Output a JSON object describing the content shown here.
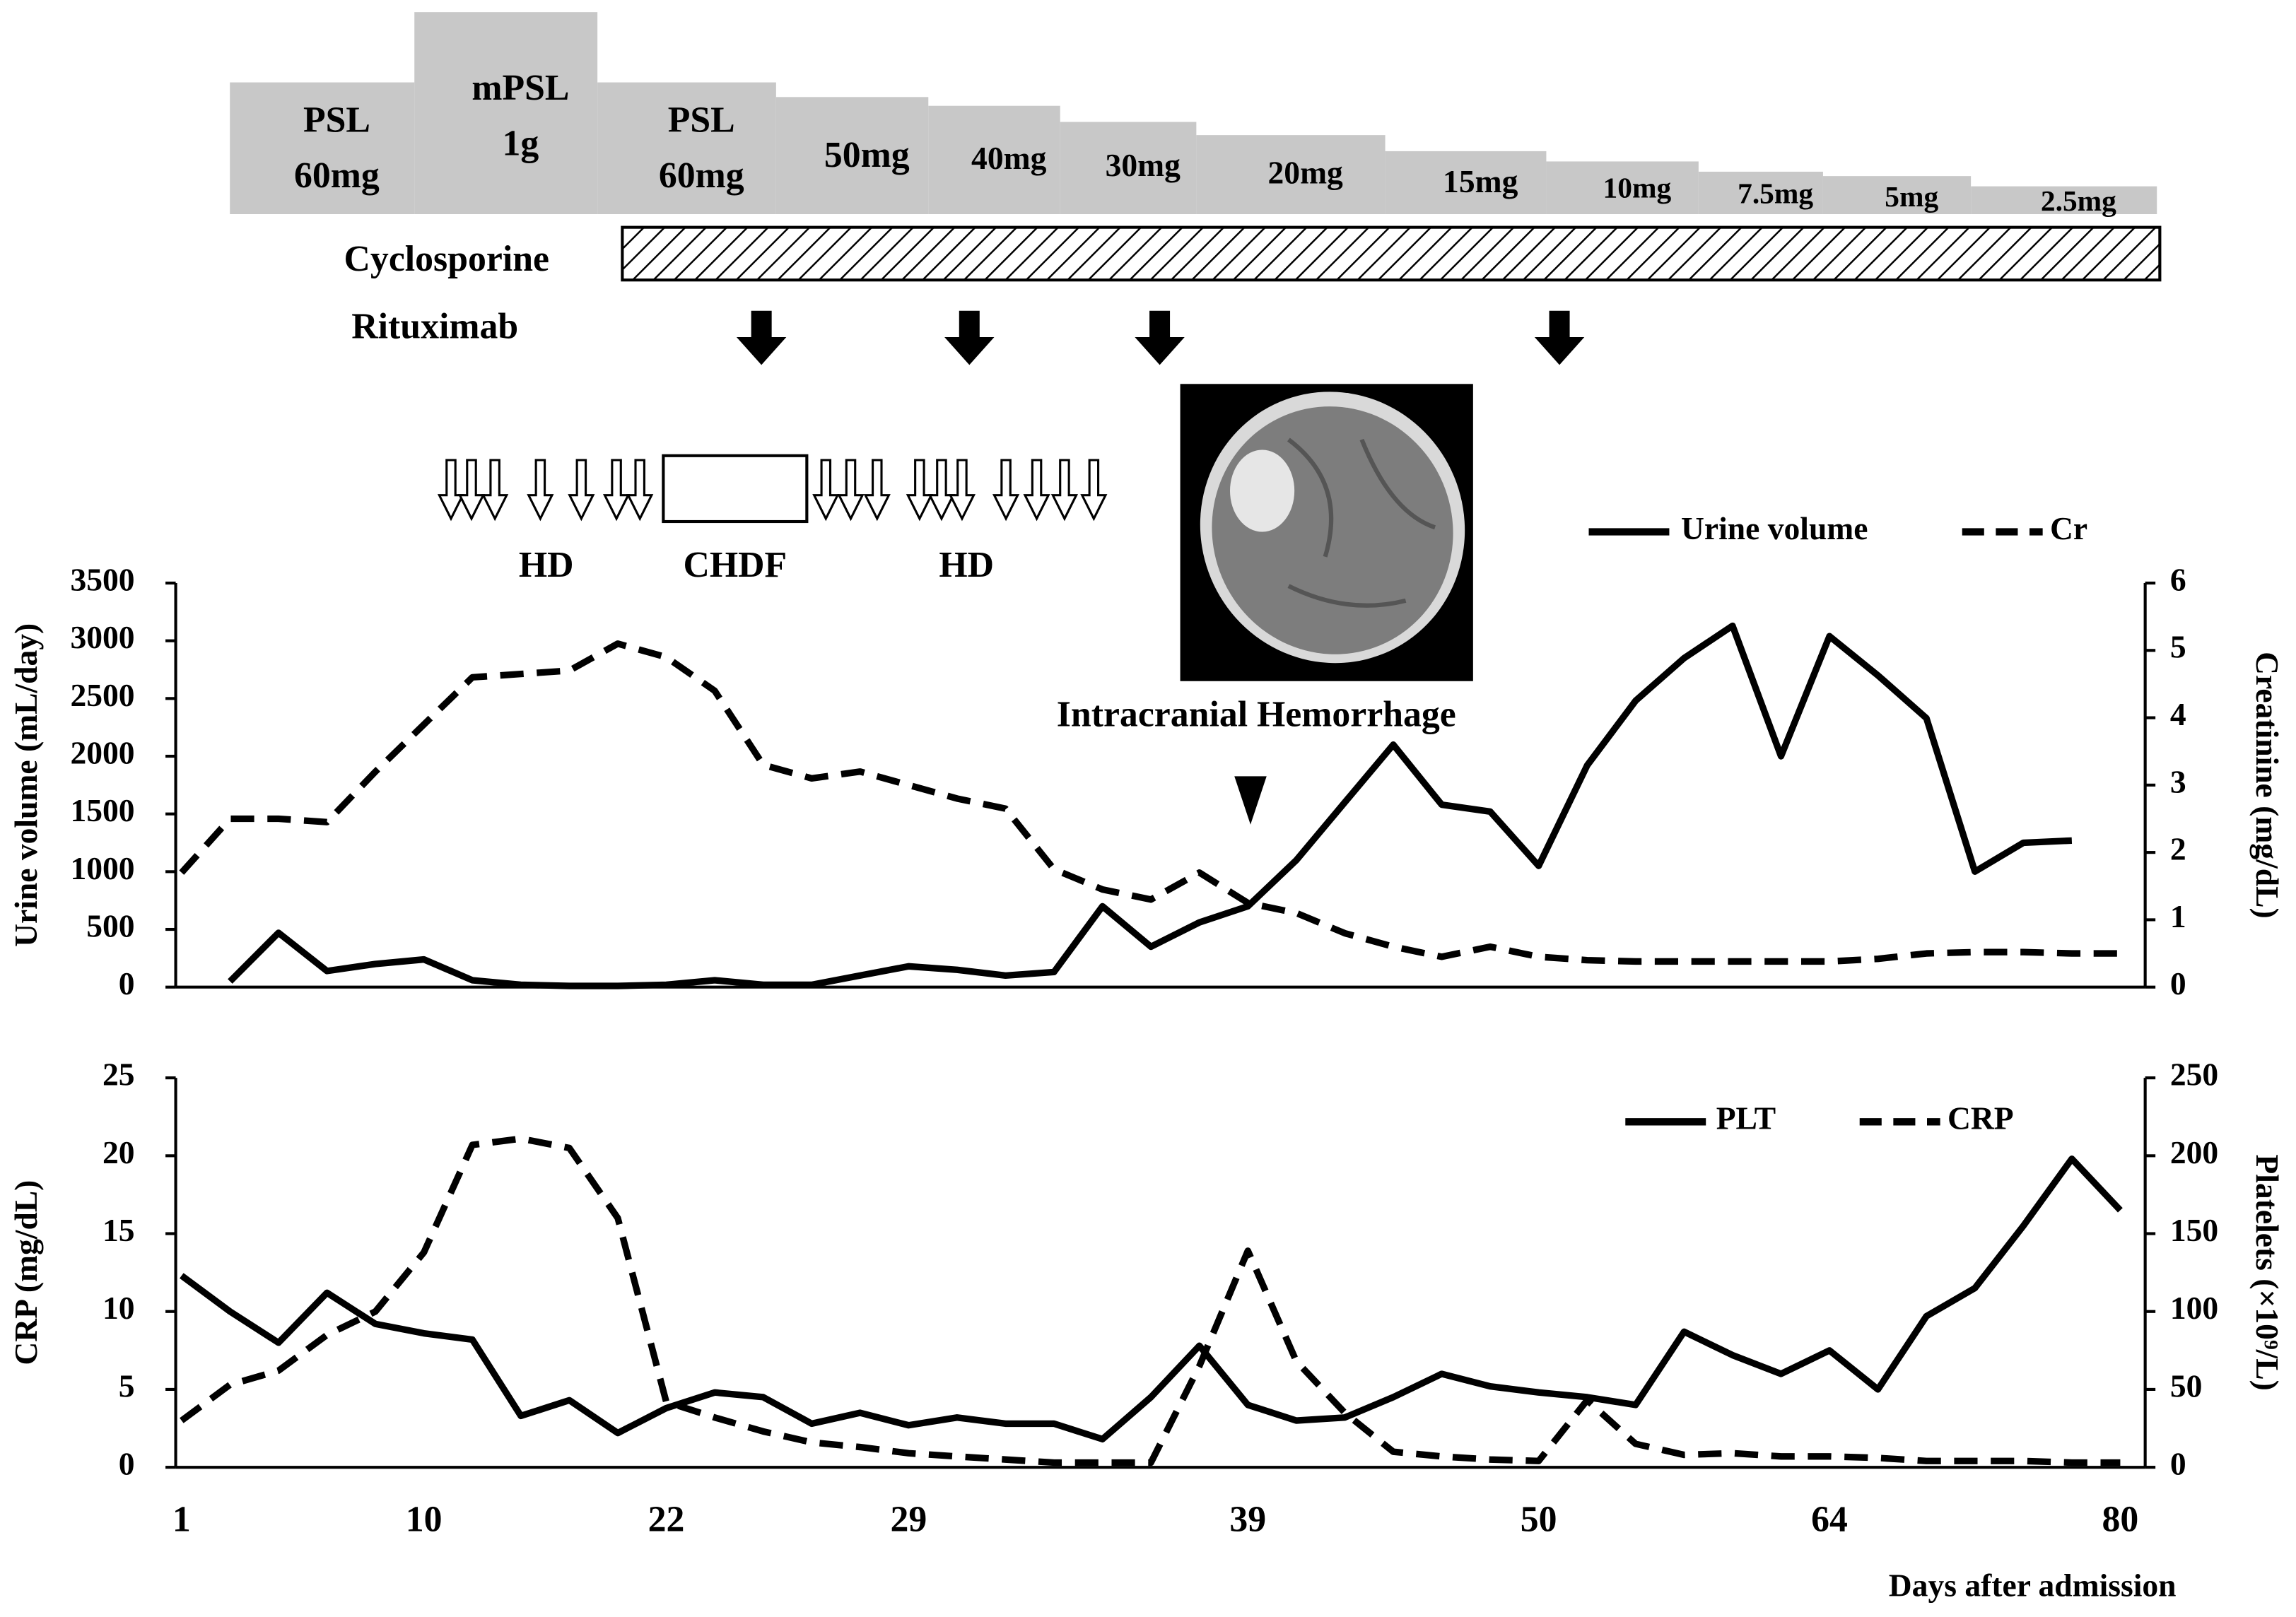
{
  "chart_data": [
    {
      "type": "line",
      "steroid_doses": [
        [
          "PSL",
          "60mg"
        ],
        [
          "mPSL",
          "1g"
        ],
        [
          "PSL",
          "60mg"
        ],
        [
          "50mg"
        ],
        [
          "40mg"
        ],
        [
          "30mg"
        ],
        [
          "20mg"
        ],
        [
          "15mg"
        ],
        [
          "10mg"
        ],
        [
          "7.5mg"
        ],
        [
          "5mg"
        ],
        [
          "2.5mg"
        ]
      ],
      "cyclosporine_label": "Cyclosporine",
      "rituximab_label": "Rituximab",
      "dialysis_labels": [
        "HD",
        "CHDF",
        "HD"
      ],
      "annotation": "Intracranial Hemorrhage",
      "ylabel": "Urine volume (mL/day)",
      "y2label": "Creatinine  (mg/dL)",
      "ylim": [
        0,
        3500
      ],
      "yticks": [
        0,
        500,
        1000,
        1500,
        2000,
        2500,
        3000,
        3500
      ],
      "y2lim": [
        0,
        6
      ],
      "y2ticks": [
        0,
        1,
        2,
        3,
        4,
        5,
        6
      ],
      "series": [
        {
          "name": "Urine volume",
          "color": "#000000",
          "dash": false,
          "values": [
            null,
            50,
            470,
            140,
            200,
            240,
            60,
            20,
            10,
            10,
            20,
            60,
            20,
            20,
            100,
            180,
            150,
            100,
            130,
            700,
            350,
            560,
            700,
            1100,
            1600,
            2100,
            1580,
            1520,
            1050,
            1920,
            2480,
            2850,
            3130,
            2000,
            3040,
            2700,
            2330,
            1000,
            1250,
            1270,
            null
          ]
        },
        {
          "name": "Cr",
          "color": "#000000",
          "dash": true,
          "axis": "y2",
          "values": [
            1.7,
            2.5,
            2.5,
            2.45,
            3.2,
            3.9,
            4.6,
            4.65,
            4.7,
            5.1,
            4.9,
            4.4,
            3.3,
            3.1,
            3.2,
            3.0,
            2.8,
            2.65,
            1.75,
            1.45,
            1.3,
            1.7,
            1.25,
            1.1,
            0.8,
            0.6,
            0.45,
            0.6,
            0.45,
            0.4,
            0.38,
            0.38,
            0.38,
            0.38,
            0.38,
            0.42,
            0.5,
            0.52,
            0.52,
            0.5,
            0.5
          ]
        }
      ]
    },
    {
      "type": "line",
      "categories": [
        "1",
        null,
        null,
        null,
        null,
        "10",
        null,
        null,
        null,
        null,
        "22",
        null,
        null,
        null,
        null,
        "29",
        null,
        null,
        null,
        null,
        null,
        null,
        "39",
        null,
        null,
        null,
        null,
        null,
        "50",
        null,
        null,
        null,
        null,
        null,
        "64",
        null,
        null,
        null,
        null,
        null,
        "80"
      ],
      "xlabel": "Days after admission",
      "ylabel": "CRP (mg/dL)",
      "y2label": "Platelets (×10⁹/L)",
      "ylim": [
        0,
        25
      ],
      "yticks": [
        0,
        5,
        10,
        15,
        20,
        25
      ],
      "y2lim": [
        0,
        250
      ],
      "y2ticks": [
        0,
        50,
        100,
        150,
        200,
        250
      ],
      "series": [
        {
          "name": "PLT",
          "color": "#000000",
          "dash": false,
          "axis": "y2",
          "values": [
            123,
            100,
            80,
            112,
            92,
            86,
            82,
            33,
            43,
            22,
            38,
            48,
            45,
            28,
            35,
            27,
            32,
            28,
            28,
            18,
            45,
            78,
            40,
            30,
            32,
            45,
            60,
            52,
            48,
            45,
            40,
            87,
            72,
            60,
            75,
            50,
            97,
            115,
            155,
            198,
            165
          ]
        },
        {
          "name": "CRP",
          "color": "#000000",
          "dash": true,
          "values": [
            3,
            5.3,
            6.2,
            8.5,
            10,
            13.8,
            20.7,
            21.1,
            20.5,
            16,
            4.2,
            3.2,
            2.3,
            1.6,
            1.3,
            0.9,
            0.7,
            0.5,
            0.3,
            0.3,
            0.3,
            6.5,
            13.9,
            6.8,
            3.5,
            1,
            0.7,
            0.5,
            0.4,
            4.3,
            1.5,
            0.8,
            0.9,
            0.7,
            0.7,
            0.6,
            0.4,
            0.4,
            0.4,
            0.3,
            0.3
          ]
        }
      ]
    }
  ]
}
